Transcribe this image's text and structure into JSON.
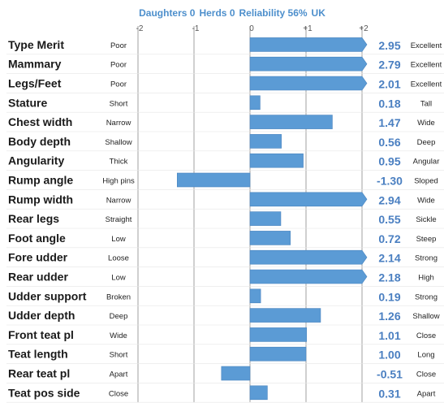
{
  "header": {
    "daughters": "Daughters 0",
    "herds": "Herds 0",
    "reliability": "Reliability 56%",
    "country": "UK"
  },
  "chart_data": {
    "type": "bar",
    "orientation": "horizontal",
    "xlim": [
      -2,
      2
    ],
    "x_ticks": [
      "-2",
      "-1",
      "0",
      "+1",
      "+2"
    ],
    "bar_color": "#5b9bd5",
    "value_color": "#4a7fc1",
    "header_color": "#4d8fcc",
    "grid": true,
    "traits": [
      {
        "name": "Type Merit",
        "low": "Poor",
        "high": "Excellent",
        "value": 2.95,
        "label": "2.95"
      },
      {
        "name": "Mammary",
        "low": "Poor",
        "high": "Excellent",
        "value": 2.79,
        "label": "2.79"
      },
      {
        "name": "Legs/Feet",
        "low": "Poor",
        "high": "Excellent",
        "value": 2.01,
        "label": "2.01"
      },
      {
        "name": "Stature",
        "low": "Short",
        "high": "Tall",
        "value": 0.18,
        "label": "0.18"
      },
      {
        "name": "Chest width",
        "low": "Narrow",
        "high": "Wide",
        "value": 1.47,
        "label": "1.47"
      },
      {
        "name": "Body depth",
        "low": "Shallow",
        "high": "Deep",
        "value": 0.56,
        "label": "0.56"
      },
      {
        "name": "Angularity",
        "low": "Thick",
        "high": "Angular",
        "value": 0.95,
        "label": "0.95"
      },
      {
        "name": "Rump angle",
        "low": "High pins",
        "high": "Sloped",
        "value": -1.3,
        "label": "-1.30"
      },
      {
        "name": "Rump width",
        "low": "Narrow",
        "high": "Wide",
        "value": 2.94,
        "label": "2.94"
      },
      {
        "name": "Rear legs",
        "low": "Straight",
        "high": "Sickle",
        "value": 0.55,
        "label": "0.55"
      },
      {
        "name": "Foot angle",
        "low": "Low",
        "high": "Steep",
        "value": 0.72,
        "label": "0.72"
      },
      {
        "name": "Fore udder",
        "low": "Loose",
        "high": "Strong",
        "value": 2.14,
        "label": "2.14"
      },
      {
        "name": "Rear udder",
        "low": "Low",
        "high": "High",
        "value": 2.18,
        "label": "2.18"
      },
      {
        "name": "Udder support",
        "low": "Broken",
        "high": "Strong",
        "value": 0.19,
        "label": "0.19"
      },
      {
        "name": "Udder depth",
        "low": "Deep",
        "high": "Shallow",
        "value": 1.26,
        "label": "1.26"
      },
      {
        "name": "Front teat pl",
        "low": "Wide",
        "high": "Close",
        "value": 1.01,
        "label": "1.01"
      },
      {
        "name": "Teat length",
        "low": "Short",
        "high": "Long",
        "value": 1.0,
        "label": "1.00"
      },
      {
        "name": "Rear teat pl",
        "low": "Apart",
        "high": "Close",
        "value": -0.51,
        "label": "-0.51"
      },
      {
        "name": "Teat pos side",
        "low": "Close",
        "high": "Apart",
        "value": 0.31,
        "label": "0.31"
      }
    ]
  }
}
